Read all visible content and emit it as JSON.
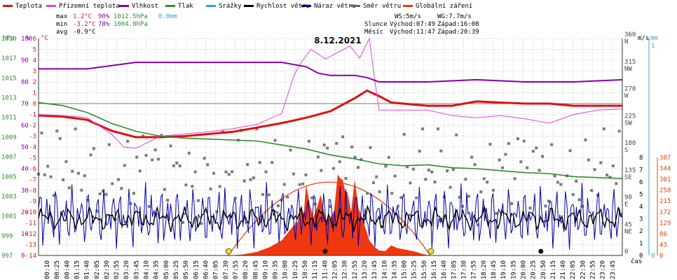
{
  "legend": [
    {
      "label": "Teplota",
      "color": "#e01010"
    },
    {
      "label": "Přízemní teplota",
      "color": "#e040e0"
    },
    {
      "label": "Vlhkost",
      "color": "#8800aa"
    },
    {
      "label": "Tlak",
      "color": "#2e8b2e"
    },
    {
      "label": "Srážky",
      "color": "#22aacc"
    },
    {
      "label": "Rychlost větru",
      "color": "#000000"
    },
    {
      "label": "Náraz větru",
      "color": "#0000aa"
    },
    {
      "label": "Směr větru",
      "color": "#666666"
    },
    {
      "label": "Globální záření",
      "color": "#e64010"
    }
  ],
  "stats": {
    "max_label": "max",
    "max_t": "1.2°C",
    "max_h": "90%",
    "max_p": "1012.5hPa",
    "max_r": "0.0mm",
    "min_label": "min",
    "min_t": "-3.2°C",
    "min_h": "78%",
    "min_p": "1004.8hPa",
    "avg_label": "avg",
    "avg_t": "-0.9°C"
  },
  "wind_info": {
    "ws": "WS:5m/s",
    "wg": "WG:7.7m/s"
  },
  "sun": {
    "label": "Slunce",
    "rise": "Východ:07:49",
    "set": "Západ:16:08"
  },
  "moon": {
    "label": "Měsíc",
    "rise": "Východ:11:47",
    "set": "Západ:20:39"
  },
  "chart_data": {
    "type": "line",
    "title": "8.12.2021",
    "xlabel": "čas",
    "axes": {
      "pressure": {
        "unit": "hPa",
        "ticks": [
          "997",
          "999",
          "1001",
          "1003",
          "1005",
          "1007",
          "1009",
          "1011",
          "1013",
          "1015",
          "1017",
          "1019"
        ],
        "color": "#2e8b2e"
      },
      "humidity": {
        "unit": "%",
        "ticks": [
          "0",
          "10",
          "20",
          "30",
          "40",
          "50",
          "60",
          "70",
          "80",
          "90",
          "100"
        ],
        "color": "#8800aa"
      },
      "temperature": {
        "unit": "°C",
        "ticks": [
          "-14",
          "-13",
          "-12",
          "-11",
          "-10",
          "-9",
          "-8",
          "-7",
          "-6",
          "-5",
          "-4",
          "-3",
          "-2",
          "-1",
          "0",
          "1",
          "2",
          "3",
          "4",
          "5",
          "6"
        ],
        "color": "#e01010"
      },
      "direction": {
        "ticks": [
          "0",
          "45 NE",
          "90 E",
          "135 SE",
          "180 S",
          "225 SW",
          "270 W",
          "315 NW",
          "360 N"
        ],
        "color": "#333333"
      },
      "wind": {
        "unit": "m/s",
        "ticks": [
          "0",
          "1",
          "2",
          "3",
          "4",
          "5",
          "6",
          "7",
          "8"
        ],
        "color": "#000000"
      },
      "rain": {
        "unit": "mm",
        "ticks": [
          "0",
          "1"
        ],
        "color": "#22aacc"
      },
      "radiation": {
        "ticks": [
          "0",
          "43",
          "86",
          "129",
          "172",
          "215",
          "258",
          "301",
          "344",
          "387"
        ],
        "color": "#e64010"
      }
    },
    "x_ticks": [
      "00:10",
      "00:25",
      "00:40",
      "01:15",
      "01:40",
      "02:05",
      "02:30",
      "02:55",
      "03:20",
      "03:45",
      "04:10",
      "04:35",
      "05:00",
      "05:25",
      "05:50",
      "06:15",
      "06:40",
      "07:05",
      "07:30",
      "07:55",
      "08:20",
      "08:45",
      "09:10",
      "09:35",
      "10:00",
      "10:25",
      "10:50",
      "11:15",
      "11:40",
      "12:05",
      "12:30",
      "12:55",
      "13:20",
      "13:45",
      "14:10",
      "14:35",
      "15:00",
      "15:25",
      "15:50",
      "16:15",
      "16:40",
      "17:05",
      "17:30",
      "17:55",
      "18:20",
      "18:45",
      "19:10",
      "19:35",
      "20:00",
      "20:25",
      "20:50",
      "21:15",
      "21:40",
      "22:05",
      "22:30",
      "22:55",
      "23:20",
      "23:45"
    ],
    "series": [
      {
        "name": "Teplota",
        "axis": "temperature",
        "x": [
          0,
          1,
          2,
          3,
          4,
          5,
          6,
          7,
          8,
          9,
          10,
          11,
          12,
          13,
          13.5,
          14,
          14.5,
          15,
          16,
          17,
          18,
          19,
          20,
          21,
          22,
          23,
          24
        ],
        "y": [
          -1.1,
          -1.2,
          -1.5,
          -2.5,
          -3.1,
          -3.1,
          -3.0,
          -2.8,
          -2.6,
          -2.2,
          -1.8,
          -1.3,
          -0.7,
          0.5,
          1.2,
          0.7,
          0.1,
          0.0,
          -0.2,
          -0.2,
          0.2,
          0.1,
          0.0,
          0.0,
          -0.2,
          -0.2,
          -0.2
        ]
      },
      {
        "name": "Přízemní teplota",
        "axis": "temperature",
        "x": [
          0,
          1,
          2,
          3,
          3.5,
          4,
          4.2,
          5,
          6,
          7,
          8,
          9,
          10,
          10.5,
          10.8,
          11.2,
          11.8,
          12.2,
          12.8,
          13.2,
          13.6,
          13.8,
          14,
          14.5,
          16,
          17,
          18,
          19,
          20,
          21,
          22,
          23,
          24
        ],
        "y": [
          -1.0,
          -1.1,
          -1.3,
          -2.8,
          -4.0,
          -4.1,
          -3.9,
          -3.0,
          -2.8,
          -2.6,
          -2.3,
          -1.9,
          -0.9,
          2.6,
          3.8,
          5.0,
          4.1,
          4.6,
          5.3,
          4.2,
          6.0,
          2.5,
          -0.6,
          -0.6,
          -0.6,
          -1.1,
          -1.3,
          -1.1,
          -1.4,
          -1.8,
          -1.0,
          -0.6,
          -0.5
        ]
      },
      {
        "name": "Vlhkost",
        "axis": "humidity",
        "x": [
          0,
          2,
          4,
          6,
          8,
          10,
          11,
          11.5,
          12,
          13,
          13.5,
          14,
          16,
          18,
          20,
          22,
          24
        ],
        "y": [
          86,
          86,
          89,
          89,
          89,
          89,
          87,
          84,
          83,
          83,
          82,
          80,
          80,
          81,
          80,
          80,
          81
        ]
      },
      {
        "name": "Tlak",
        "axis": "pressure",
        "x": [
          0,
          1,
          2,
          3,
          4,
          5,
          6,
          7,
          8,
          9,
          10,
          11,
          12,
          13,
          14,
          15,
          16,
          17,
          18,
          19,
          20,
          21,
          22,
          23,
          24
        ],
        "y": [
          1012.5,
          1012.2,
          1011.5,
          1010.4,
          1009.6,
          1009.1,
          1008.9,
          1008.8,
          1008.7,
          1008.6,
          1008.2,
          1007.8,
          1007.2,
          1006.8,
          1006.3,
          1006.1,
          1006.2,
          1005.9,
          1005.8,
          1005.6,
          1005.4,
          1005.3,
          1005.0,
          1004.9,
          1004.8
        ]
      }
    ],
    "wind_speed": {
      "axis": "wind",
      "mean": 3.0,
      "amplitude": 0.8
    },
    "wind_gust": {
      "axis": "wind",
      "mean": 3.2,
      "amplitude": 2.3
    },
    "wind_dir": {
      "axis": "direction",
      "mean": 135,
      "amplitude": 75
    },
    "radiation": {
      "axis": "radiation",
      "x": [
        7.8,
        9,
        10,
        10.5,
        10.8,
        11.0,
        11.3,
        11.6,
        12.0,
        12.3,
        12.5,
        12.7,
        13.0,
        13.3,
        13.6,
        14.0,
        14.5,
        15.0,
        15.5,
        16.1
      ],
      "y": [
        0,
        15,
        60,
        120,
        200,
        280,
        150,
        240,
        150,
        320,
        300,
        250,
        300,
        150,
        60,
        20,
        40,
        25,
        15,
        0
      ]
    },
    "clear_sky": {
      "axis": "radiation",
      "x": [
        7.8,
        12.0,
        16.1
      ],
      "y": [
        0,
        290,
        0
      ]
    },
    "events": {
      "sunrise": 7.82,
      "sunset": 16.13,
      "moonrise": 11.78,
      "moonset": 20.65
    }
  }
}
